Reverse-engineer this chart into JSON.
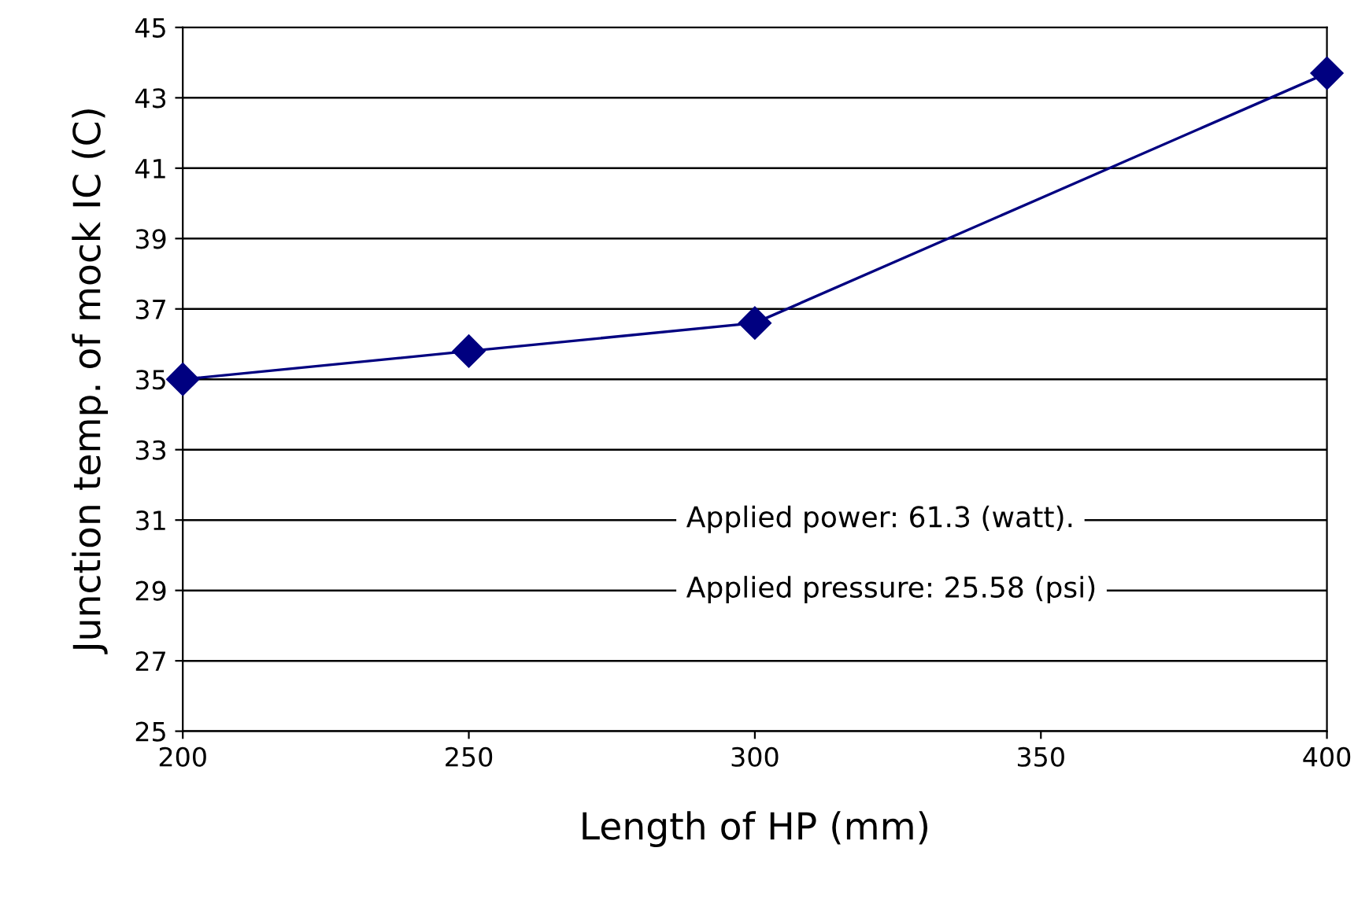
{
  "chart_data": {
    "type": "line",
    "xlabel": "Length of HP (mm)",
    "ylabel": "Junction temp. of mock IC (C)",
    "x": [
      200,
      250,
      300,
      400
    ],
    "series": [
      {
        "color": "#000080",
        "values": [
          35.0,
          35.8,
          36.6,
          43.7
        ]
      }
    ],
    "xlim": [
      200,
      400
    ],
    "xticks": [
      200,
      250,
      300,
      350,
      400
    ],
    "ylim": [
      25,
      45
    ],
    "yticks": [
      25,
      27,
      29,
      31,
      33,
      35,
      37,
      39,
      41,
      43,
      45
    ],
    "grid": "y",
    "marker": "diamond",
    "line_style": "solid",
    "legend": false,
    "annotations": [
      "Applied power: 61.3 (watt).",
      "Applied pressure: 25.58 (psi)"
    ]
  }
}
